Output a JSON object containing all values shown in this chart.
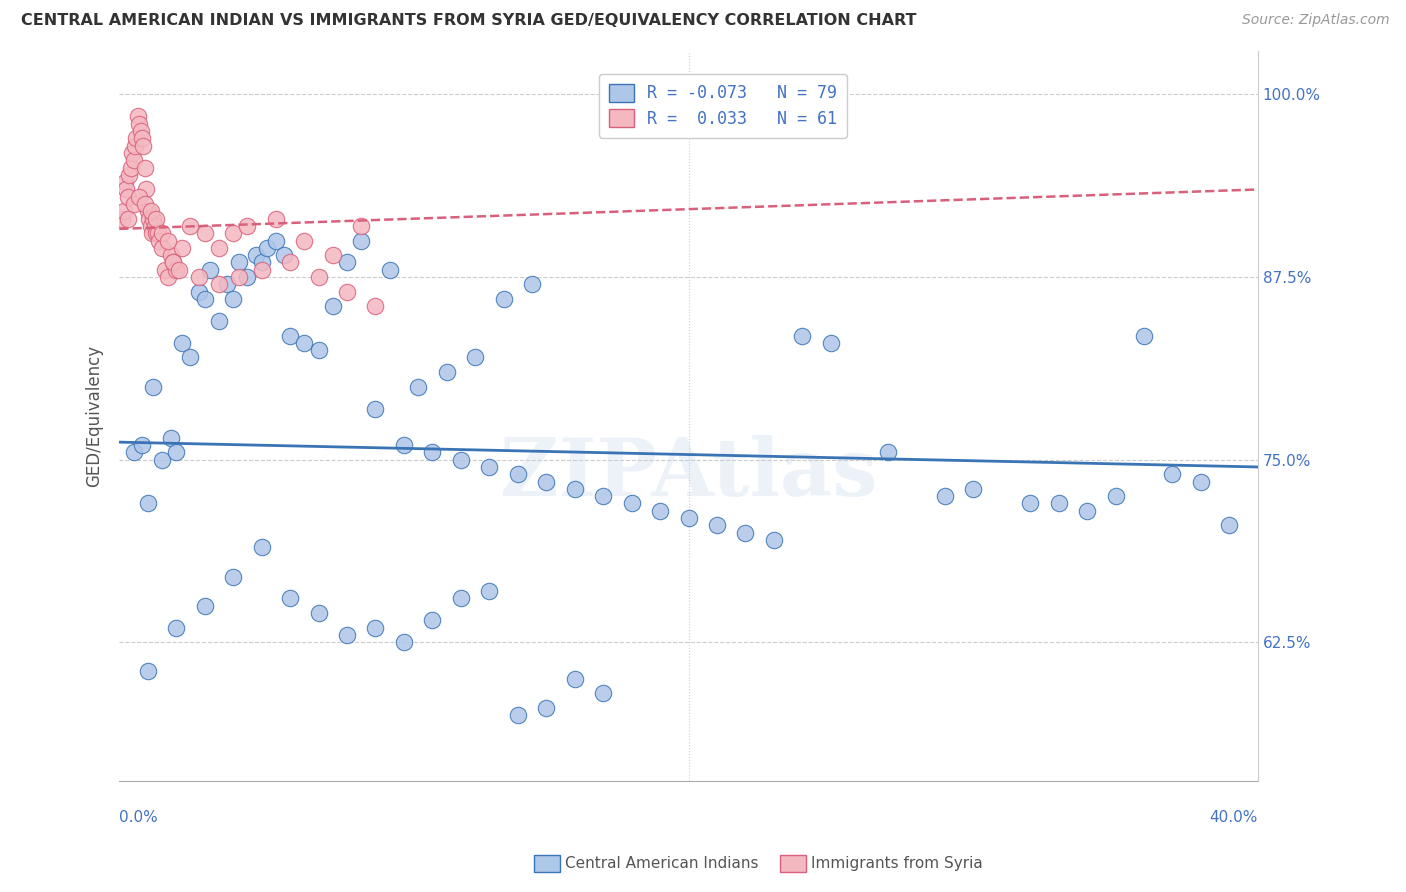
{
  "title": "CENTRAL AMERICAN INDIAN VS IMMIGRANTS FROM SYRIA GED/EQUIVALENCY CORRELATION CHART",
  "source": "Source: ZipAtlas.com",
  "ylabel": "GED/Equivalency",
  "xmin": 0.0,
  "xmax": 40.0,
  "ymin": 53.0,
  "ymax": 103.0,
  "series1_color": "#aec6e8",
  "series2_color": "#f4b8c1",
  "line1_color": "#3a74b5",
  "line2_color": "#d9607a",
  "watermark": "ZIPAtlas",
  "watermark_color_r": 185,
  "watermark_color_g": 205,
  "watermark_color_b": 235,
  "background_color": "#ffffff",
  "blue_trend_y0": 76.2,
  "blue_trend_y1": 74.5,
  "pink_trend_y0": 90.8,
  "pink_trend_y1": 93.5,
  "blue_x": [
    0.5,
    0.8,
    1.0,
    1.2,
    1.5,
    1.8,
    2.0,
    2.2,
    2.5,
    2.8,
    3.0,
    3.2,
    3.5,
    3.8,
    4.0,
    4.2,
    4.5,
    4.8,
    5.0,
    5.2,
    5.5,
    5.8,
    6.0,
    6.5,
    7.0,
    7.5,
    8.0,
    8.5,
    9.0,
    9.5,
    10.0,
    10.5,
    11.0,
    11.5,
    12.0,
    12.5,
    13.0,
    13.5,
    14.0,
    14.5,
    15.0,
    16.0,
    17.0,
    18.0,
    19.0,
    20.0,
    21.0,
    22.0,
    23.0,
    24.0,
    25.0,
    27.0,
    29.0,
    30.0,
    32.0,
    33.0,
    34.0,
    35.0,
    36.0,
    37.0,
    38.0,
    39.0,
    1.0,
    2.0,
    3.0,
    4.0,
    5.0,
    6.0,
    7.0,
    8.0,
    9.0,
    10.0,
    11.0,
    12.0,
    13.0,
    14.0,
    15.0,
    16.0,
    17.0
  ],
  "blue_y": [
    75.5,
    76.0,
    72.0,
    80.0,
    75.0,
    76.5,
    75.5,
    83.0,
    82.0,
    86.5,
    86.0,
    88.0,
    84.5,
    87.0,
    86.0,
    88.5,
    87.5,
    89.0,
    88.5,
    89.5,
    90.0,
    89.0,
    83.5,
    83.0,
    82.5,
    85.5,
    88.5,
    90.0,
    78.5,
    88.0,
    76.0,
    80.0,
    75.5,
    81.0,
    75.0,
    82.0,
    74.5,
    86.0,
    74.0,
    87.0,
    73.5,
    73.0,
    72.5,
    72.0,
    71.5,
    71.0,
    70.5,
    70.0,
    69.5,
    83.5,
    83.0,
    75.5,
    72.5,
    73.0,
    72.0,
    72.0,
    71.5,
    72.5,
    83.5,
    74.0,
    73.5,
    70.5,
    60.5,
    63.5,
    65.0,
    67.0,
    69.0,
    65.5,
    64.5,
    63.0,
    63.5,
    62.5,
    64.0,
    65.5,
    66.0,
    57.5,
    58.0,
    60.0,
    59.0
  ],
  "pink_x": [
    0.1,
    0.15,
    0.2,
    0.25,
    0.3,
    0.35,
    0.4,
    0.45,
    0.5,
    0.55,
    0.6,
    0.65,
    0.7,
    0.75,
    0.8,
    0.85,
    0.9,
    0.95,
    1.0,
    1.05,
    1.1,
    1.15,
    1.2,
    1.25,
    1.3,
    1.35,
    1.4,
    1.5,
    1.6,
    1.7,
    1.8,
    1.9,
    2.0,
    2.2,
    2.5,
    3.0,
    3.5,
    4.0,
    4.5,
    5.5,
    6.5,
    7.5,
    8.5,
    0.3,
    0.5,
    0.7,
    0.9,
    1.1,
    1.3,
    1.5,
    1.7,
    1.9,
    2.1,
    2.8,
    3.5,
    4.2,
    5.0,
    6.0,
    7.0,
    8.0,
    9.0
  ],
  "pink_y": [
    91.5,
    92.0,
    94.0,
    93.5,
    93.0,
    94.5,
    95.0,
    96.0,
    95.5,
    96.5,
    97.0,
    98.5,
    98.0,
    97.5,
    97.0,
    96.5,
    95.0,
    93.5,
    92.0,
    91.5,
    91.0,
    90.5,
    91.5,
    91.0,
    90.5,
    90.5,
    90.0,
    89.5,
    88.0,
    87.5,
    89.0,
    88.5,
    88.0,
    89.5,
    91.0,
    90.5,
    89.5,
    90.5,
    91.0,
    91.5,
    90.0,
    89.0,
    91.0,
    91.5,
    92.5,
    93.0,
    92.5,
    92.0,
    91.5,
    90.5,
    90.0,
    88.5,
    88.0,
    87.5,
    87.0,
    87.5,
    88.0,
    88.5,
    87.5,
    86.5,
    85.5
  ]
}
